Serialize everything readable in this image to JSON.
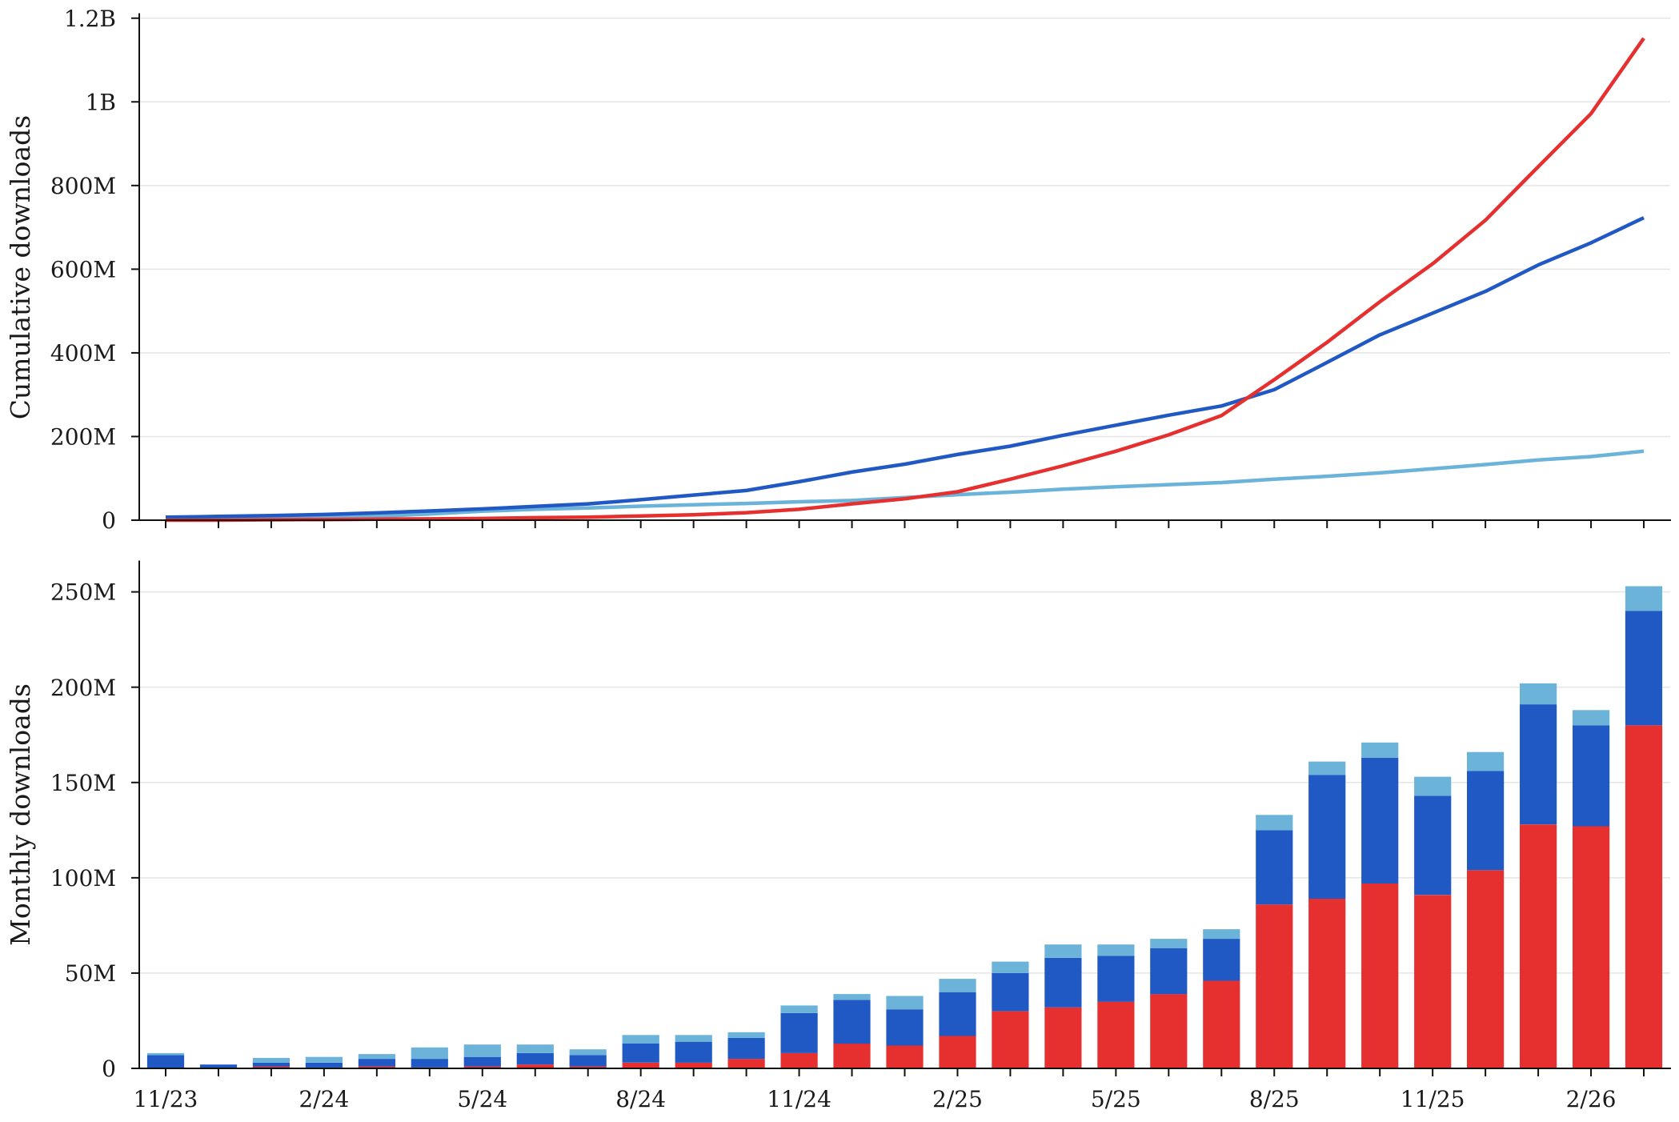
{
  "chart_data": [
    {
      "type": "line",
      "ylabel": "Cumulative downloads",
      "x": [
        "11/23",
        "12/23",
        "1/24",
        "2/24",
        "3/24",
        "4/24",
        "5/24",
        "6/24",
        "7/24",
        "8/24",
        "9/24",
        "10/24",
        "11/24",
        "12/24",
        "1/25",
        "2/25",
        "3/25",
        "4/25",
        "5/25",
        "6/25",
        "7/25",
        "8/25",
        "9/25",
        "10/25",
        "11/25",
        "12/25",
        "1/26",
        "2/26",
        "3/26"
      ],
      "x_tick_labels": [],
      "ylim": [
        0,
        1210
      ],
      "y_ticks": [
        0,
        200,
        400,
        600,
        800,
        1000,
        1200
      ],
      "y_tick_labels": [
        "0",
        "200M",
        "400M",
        "600M",
        "800M",
        "1B",
        "1.2B"
      ],
      "grid": true,
      "series": [
        {
          "color": "#e63030",
          "values": [
            0,
            0,
            1,
            1.5,
            2.5,
            3,
            4,
            6,
            7,
            10,
            13,
            18,
            26,
            39,
            51,
            68,
            98,
            130,
            165,
            204,
            250,
            336,
            425,
            522,
            613,
            717,
            845,
            972,
            1152
          ]
        },
        {
          "color": "#2159c4",
          "values": [
            7,
            9,
            11,
            13.5,
            17.5,
            22,
            27,
            33,
            39,
            49,
            60,
            71,
            92,
            115,
            134,
            157,
            177,
            203,
            227,
            251,
            273,
            312,
            377,
            443,
            495,
            547,
            610,
            663,
            723
          ]
        },
        {
          "color": "#6bb3d9",
          "values": [
            1,
            1,
            3.5,
            6.5,
            9,
            15,
            21.5,
            26,
            29,
            33.5,
            37,
            40,
            44,
            47,
            54,
            61,
            67,
            74,
            80,
            85,
            90,
            98,
            105,
            113,
            123,
            133,
            144,
            152,
            165
          ]
        }
      ]
    },
    {
      "type": "bar",
      "stacked": true,
      "ylabel": "Monthly downloads",
      "x": [
        "11/23",
        "12/23",
        "1/24",
        "2/24",
        "3/24",
        "4/24",
        "5/24",
        "6/24",
        "7/24",
        "8/24",
        "9/24",
        "10/24",
        "11/24",
        "12/24",
        "1/25",
        "2/25",
        "3/25",
        "4/25",
        "5/25",
        "6/25",
        "7/25",
        "8/25",
        "9/25",
        "10/25",
        "11/25",
        "12/25",
        "1/26",
        "2/26",
        "3/26"
      ],
      "x_tick_labels": [
        "11/23",
        "2/24",
        "5/24",
        "8/24",
        "11/24",
        "2/25",
        "5/25",
        "8/25",
        "11/25",
        "2/26"
      ],
      "ylim": [
        0,
        266
      ],
      "y_ticks": [
        0,
        50,
        100,
        150,
        200,
        250
      ],
      "y_tick_labels": [
        "0",
        "50M",
        "100M",
        "150M",
        "200M",
        "250M"
      ],
      "grid": true,
      "series": [
        {
          "color": "#e63030",
          "values": [
            0,
            0,
            1,
            0.5,
            1,
            0.5,
            1,
            2,
            1,
            3,
            3,
            5,
            8,
            13,
            12,
            17,
            30,
            32,
            35,
            39,
            46,
            86,
            89,
            97,
            91,
            104,
            128,
            127,
            180
          ]
        },
        {
          "color": "#2159c4",
          "values": [
            7,
            2,
            2,
            2.5,
            4,
            4.5,
            5,
            6,
            6,
            10,
            11,
            11,
            21,
            23,
            19,
            23,
            20,
            26,
            24,
            24,
            22,
            39,
            65,
            66,
            52,
            52,
            63,
            53,
            60
          ]
        },
        {
          "color": "#6bb3d9",
          "values": [
            1,
            0,
            2.5,
            3,
            2.5,
            6,
            6.5,
            4.5,
            3,
            4.5,
            3.5,
            3,
            4,
            3,
            7,
            7,
            6,
            7,
            6,
            5,
            5,
            8,
            7,
            8,
            10,
            10,
            11,
            8,
            13
          ]
        }
      ]
    }
  ]
}
